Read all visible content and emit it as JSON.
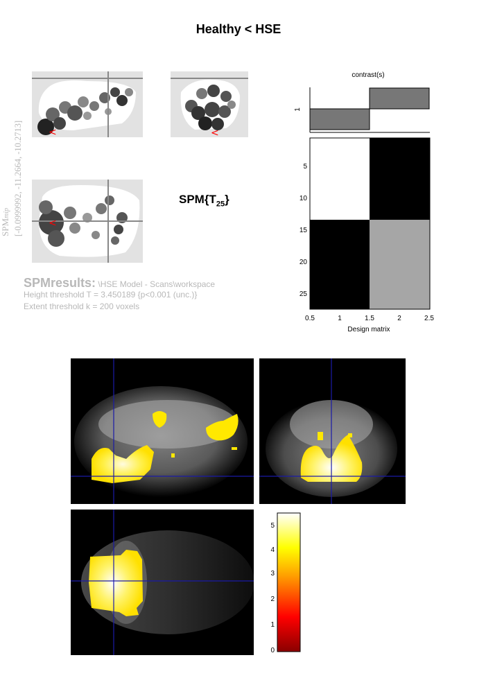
{
  "title": "Healthy < HSE",
  "mip_label": {
    "spm": "SPM",
    "mip": "mip",
    "coords": "[-0.0999992, -11.2664, -10.2713]"
  },
  "stat": {
    "base": "SPM{T",
    "df": "25",
    "close": "}"
  },
  "results": {
    "heading": "SPMresults:",
    "path": "\\HSE Model - Scans\\workspace",
    "height": "Height threshold T = 3.450189  {p<0.001 (unc.)}",
    "extent": "Extent threshold k = 200 voxels"
  },
  "contrast": {
    "title": "contrast(s)",
    "row_label": "1",
    "weights": [
      -1,
      1
    ]
  },
  "design_matrix": {
    "xlabel": "Design matrix",
    "xticks": [
      "0.5",
      "1",
      "1.5",
      "2",
      "2.5"
    ],
    "yticks": [
      "5",
      "10",
      "15",
      "20",
      "25"
    ],
    "rows": 27,
    "cols": 2,
    "split_row": 13.5
  },
  "colorbar": {
    "ticks": [
      "0",
      "1",
      "2",
      "3",
      "4",
      "5"
    ],
    "max": 5.4
  },
  "colors": {
    "cursor": "#1a1aa8",
    "mip_marker": "#ff0000",
    "blob": "#ffe800"
  }
}
